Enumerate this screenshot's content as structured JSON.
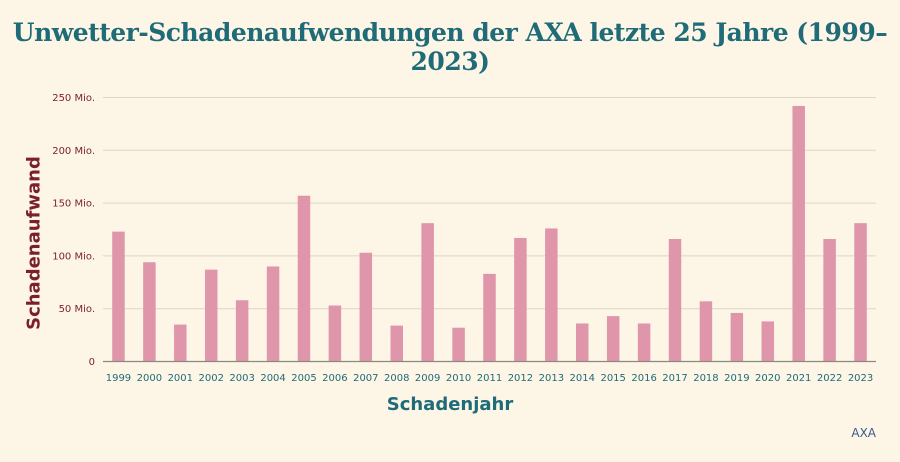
{
  "chart_data": {
    "type": "bar",
    "title": "Unwetter-Schadenaufwendungen der AXA letzte 25 Jahre (1999–2023)",
    "xlabel": "Schadenjahr",
    "ylabel": "Schadenaufwand",
    "source": "AXA",
    "categories": [
      "1999",
      "2000",
      "2001",
      "2002",
      "2003",
      "2004",
      "2005",
      "2006",
      "2007",
      "2008",
      "2009",
      "2010",
      "2011",
      "2012",
      "2013",
      "2014",
      "2015",
      "2016",
      "2017",
      "2018",
      "2019",
      "2020",
      "2021",
      "2022",
      "2023"
    ],
    "values": [
      123,
      94,
      35,
      87,
      58,
      90,
      157,
      53,
      103,
      34,
      131,
      32,
      83,
      117,
      126,
      36,
      43,
      36,
      116,
      57,
      46,
      38,
      242,
      116,
      131
    ],
    "ylim": [
      0,
      250
    ],
    "yticks": [
      0,
      50,
      100,
      150,
      200,
      250
    ],
    "ytick_labels": [
      "0",
      "50 Mio.",
      "100 Mio.",
      "150 Mio.",
      "200 Mio.",
      "250 Mio."
    ],
    "grid": true,
    "colors": {
      "bar": "#e096aa",
      "title": "#1f6b78",
      "ylabel": "#7b1f2b",
      "grid": "#ddd5c6",
      "axis": "#8a8a80"
    }
  }
}
